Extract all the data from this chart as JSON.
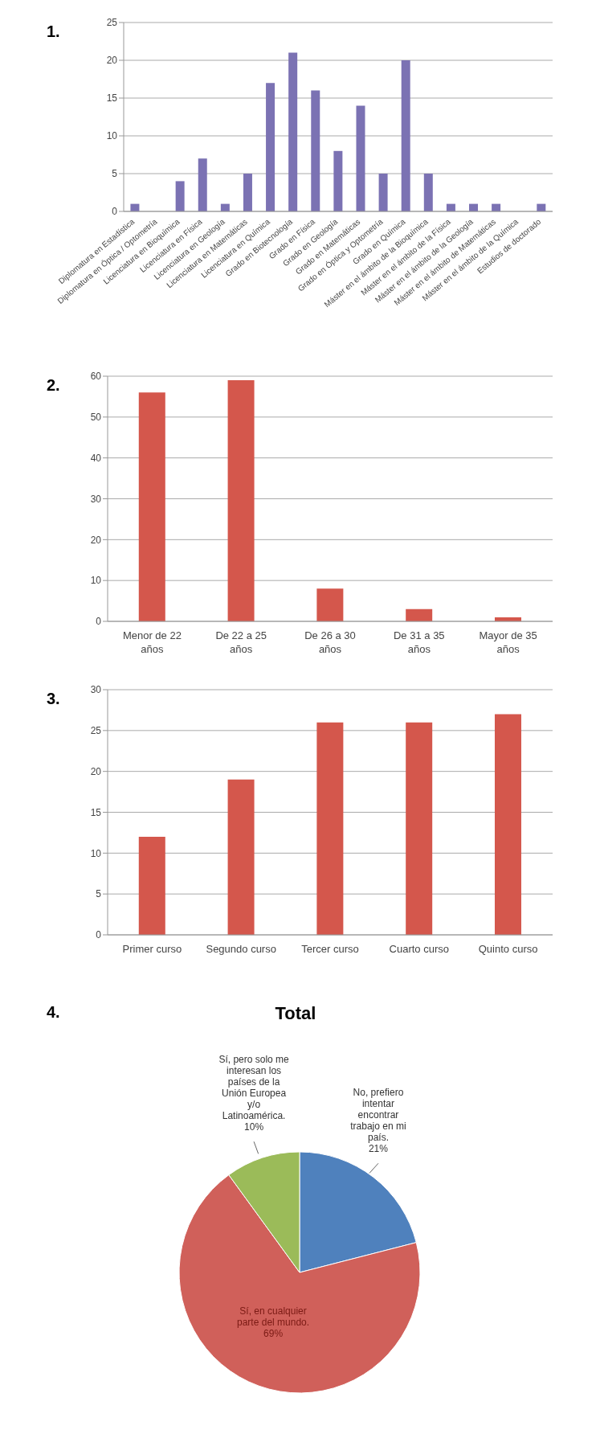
{
  "chart_data": [
    {
      "type": "bar",
      "annotations": [
        "1."
      ],
      "categories": [
        "Diplomatura en Estadística",
        "Diplomatura en Óptica / Optometría",
        "Licenciatura en Bioquímica",
        "Licenciatura en Física",
        "Licenciatura en Geología",
        "Licenciatura en Matemáticas",
        "Licenciatura en Química",
        "Grado en Biotecnología",
        "Grado en Física",
        "Grado en Geología",
        "Grado en Matemáticas",
        "Grado en Óptica y Optometría",
        "Grado en Química",
        "Máster en el ámbito de la Bioquímica",
        "Máster en el ámbito de la Física",
        "Máster en el ámbito de la Geología",
        "Máster en el ámbito de Matemáticas",
        "Máster en el ámbito de la Química",
        "Estudios de doctorado"
      ],
      "values": [
        1,
        0,
        4,
        7,
        1,
        5,
        17,
        21,
        16,
        8,
        14,
        5,
        20,
        5,
        1,
        1,
        1,
        0,
        1
      ],
      "color": "#7b72b3",
      "ylim": [
        0,
        25
      ],
      "yticks": [
        0,
        5,
        10,
        15,
        20,
        25
      ],
      "grid": "y"
    },
    {
      "type": "bar",
      "annotations": [
        "2."
      ],
      "categories": [
        "Menor de 22 años",
        "De 22 a 25 años",
        "De 26 a 30 años",
        "De 31 a 35 años",
        "Mayor de 35 años"
      ],
      "values": [
        56,
        59,
        8,
        3,
        1
      ],
      "color": "#d4574c",
      "ylim": [
        0,
        60
      ],
      "yticks": [
        0,
        10,
        20,
        30,
        40,
        50,
        60
      ],
      "grid": "y"
    },
    {
      "type": "bar",
      "annotations": [
        "3."
      ],
      "categories": [
        "Primer curso",
        "Segundo curso",
        "Tercer curso",
        "Cuarto curso",
        "Quinto curso"
      ],
      "values": [
        12,
        19,
        26,
        26,
        27
      ],
      "color": "#d4574c",
      "ylim": [
        0,
        30
      ],
      "yticks": [
        0,
        5,
        10,
        15,
        20,
        25,
        30
      ],
      "grid": "y"
    },
    {
      "type": "pie",
      "title": "Total",
      "annotations": [
        "4."
      ],
      "categories": [
        "No, prefiero intentar encontrar trabajo en mi país.",
        "Sí, en cualquier parte del mundo.",
        "Sí, pero solo me interesan los países de la Unión Europea y/o Latinoamérica."
      ],
      "values": [
        21,
        69,
        10
      ],
      "value_labels": [
        "21%",
        "69%",
        "10%"
      ],
      "colors": [
        "#4f81bd",
        "#d0605a",
        "#9bbb59"
      ]
    }
  ]
}
